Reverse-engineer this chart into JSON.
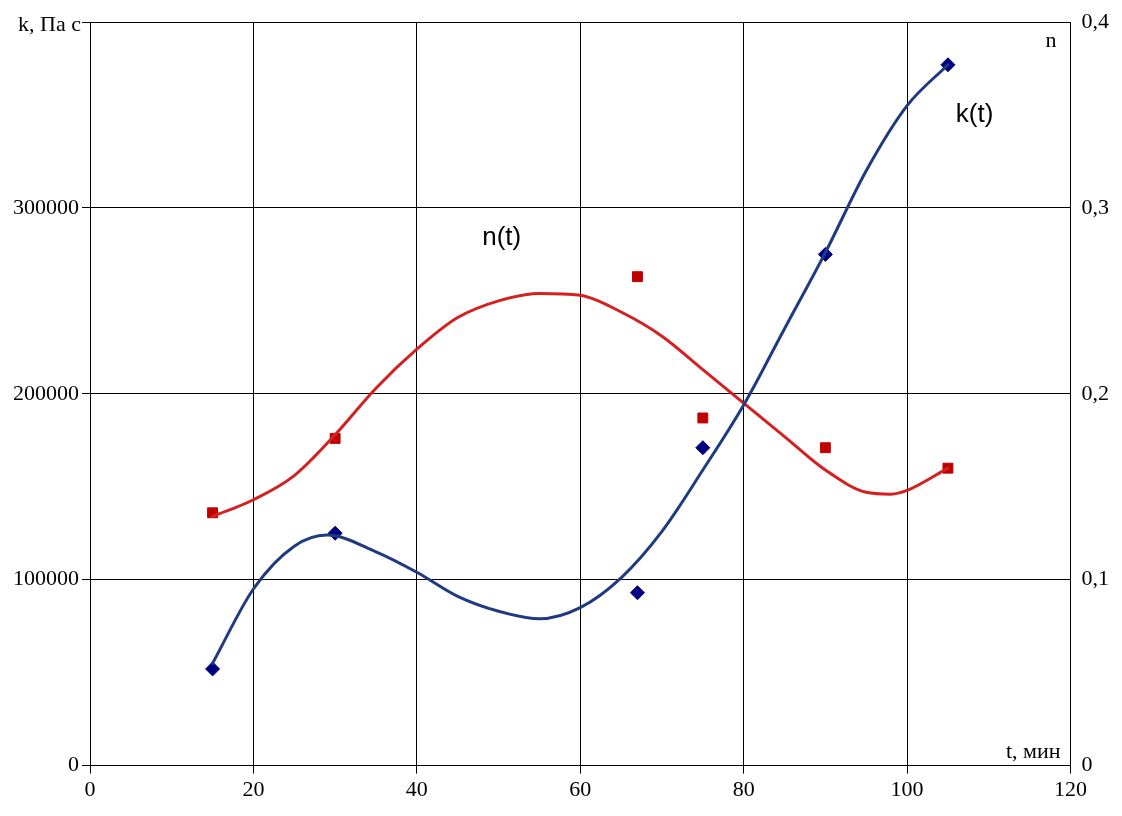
{
  "chart_data": {
    "type": "scatter",
    "xlabel": "t, мин",
    "ylabel": "k, Па с",
    "y2label": "n",
    "xlim": [
      0,
      120
    ],
    "xticks": [
      0,
      20,
      40,
      60,
      80,
      100,
      120
    ],
    "ylim": [
      0,
      400000
    ],
    "yticks": [
      0,
      100000,
      200000,
      300000,
      {
        "value": 400000,
        "label": null
      }
    ],
    "y2lim": [
      0,
      0.4
    ],
    "y2ticks": [
      {
        "value": 0,
        "label": "0"
      },
      {
        "value": 0.1,
        "label": "0,1"
      },
      {
        "value": 0.2,
        "label": "0,2"
      },
      {
        "value": 0.3,
        "label": "0,3"
      },
      {
        "value": 0.4,
        "label": "0,4"
      }
    ],
    "grid": true,
    "legend": false,
    "series": [
      {
        "type": "scatter",
        "color": "#000080",
        "marker": "diamond",
        "x": [
          15,
          30,
          67,
          75,
          90,
          105
        ],
        "values": [
          52000,
          125000,
          93000,
          171000,
          275000,
          377000
        ]
      },
      {
        "type": "scatter",
        "color": "#c00000",
        "marker": "square",
        "axis": "y2",
        "x": [
          15,
          30,
          67,
          75,
          90,
          105
        ],
        "values": [
          0.136,
          0.176,
          0.263,
          0.187,
          0.171,
          0.16
        ]
      },
      {
        "type": "line",
        "color": "#1f3a80",
        "marker": "none",
        "x": [
          15,
          20,
          25,
          29,
          35,
          40,
          45,
          50,
          55,
          60,
          65,
          70,
          75,
          80,
          85,
          90,
          95,
          100,
          105
        ],
        "values": [
          55000,
          95000,
          118000,
          124000,
          115000,
          104000,
          91000,
          83000,
          79000,
          85000,
          101000,
          126000,
          159000,
          194000,
          235000,
          276000,
          320000,
          355000,
          377000
        ]
      },
      {
        "type": "line",
        "color": "#d42020",
        "marker": "none",
        "axis": "y2",
        "x": [
          15,
          20,
          25,
          30,
          35,
          40,
          45,
          50,
          55,
          60,
          65,
          70,
          75,
          80,
          85,
          90,
          95,
          98,
          100,
          105
        ],
        "values": [
          0.134,
          0.143,
          0.156,
          0.178,
          0.203,
          0.224,
          0.241,
          0.25,
          0.254,
          0.253,
          0.244,
          0.231,
          0.213,
          0.195,
          0.177,
          0.159,
          0.147,
          0.146,
          0.148,
          0.16
        ]
      }
    ],
    "annotations": [
      "k(t)",
      "n(t)"
    ]
  }
}
